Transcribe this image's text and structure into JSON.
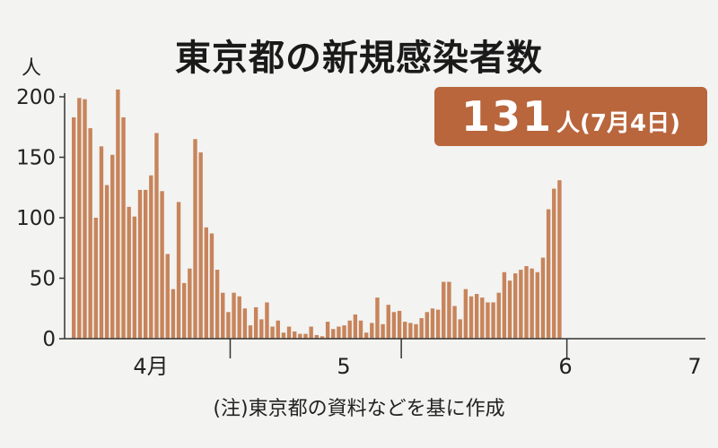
{
  "header": {
    "title": "東京都の新規感染者数",
    "unit": "人"
  },
  "callout": {
    "value": "131",
    "suffix": "人(7月4日)"
  },
  "footnote": "(注)東京都の資料などを基に作成",
  "colors": {
    "bar": "#c7845b",
    "callout": "#b9663d",
    "background": "#f3f3f1",
    "axis": "#333333"
  },
  "chart_data": {
    "type": "bar",
    "ylim": [
      0,
      200
    ],
    "yticks": [
      0,
      50,
      100,
      150,
      200
    ],
    "ytick_labels": [
      "0",
      "50",
      "100",
      "150",
      "200"
    ],
    "xtick_labels": [
      "4月",
      "5",
      "6",
      "7"
    ],
    "grid": false,
    "values": [
      183,
      199,
      198,
      174,
      100,
      159,
      127,
      152,
      206,
      183,
      109,
      101,
      123,
      123,
      135,
      170,
      122,
      70,
      41,
      113,
      46,
      58,
      165,
      154,
      92,
      87,
      57,
      38,
      22,
      38,
      35,
      25,
      11,
      26,
      16,
      30,
      10,
      15,
      5,
      10,
      6,
      4,
      4,
      10,
      3,
      2,
      14,
      8,
      10,
      11,
      15,
      20,
      15,
      5,
      13,
      34,
      12,
      28,
      22,
      23,
      14,
      13,
      12,
      17,
      22,
      25,
      24,
      47,
      47,
      27,
      16,
      41,
      35,
      37,
      34,
      30,
      30,
      38,
      55,
      48,
      54,
      57,
      60,
      58,
      55,
      67,
      107,
      124,
      131
    ]
  }
}
